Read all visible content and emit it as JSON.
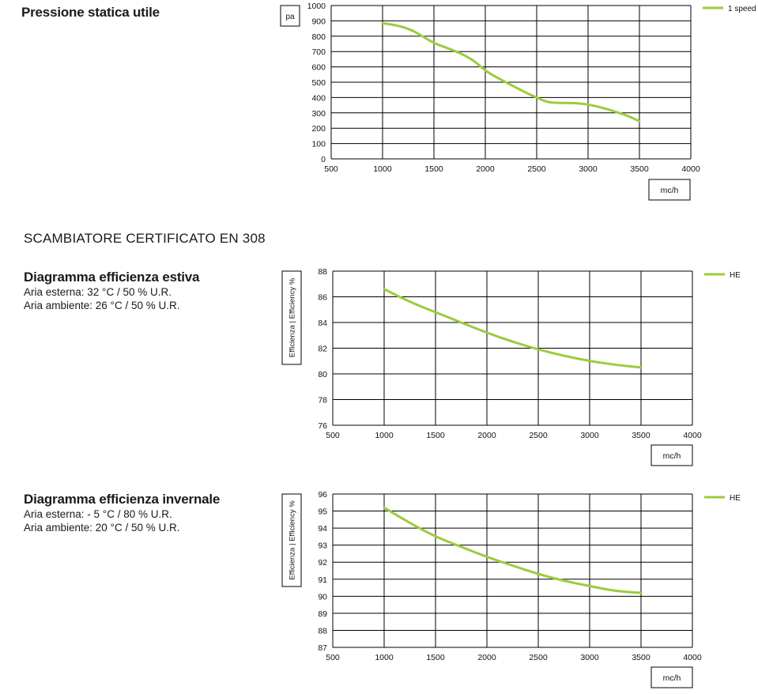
{
  "pressione": {
    "title": "Pressione statica utile"
  },
  "section_heading": "SCAMBIATORE CERTIFICATO EN 308",
  "estiva": {
    "title": "Diagramma efficienza estiva",
    "line1": "Aria esterna: 32 °C / 50 % U.R.",
    "line2": "Aria ambiente: 26 °C / 50 % U.R."
  },
  "invernale": {
    "title": "Diagramma efficienza invernale",
    "line1": "Aria esterna: - 5 °C / 80 % U.R.",
    "line2": "Aria ambiente: 20 °C / 50 % U.R."
  },
  "colors": {
    "series": "#9bcc3c",
    "grid": "#000000"
  },
  "chart_data": [
    {
      "type": "line",
      "ylabel": "pa",
      "xlabel": "mc/h",
      "xlim": [
        500,
        4000
      ],
      "ylim": [
        0,
        1000
      ],
      "xticks": [
        500,
        1000,
        1500,
        2000,
        2500,
        3000,
        3500,
        4000
      ],
      "yticks": [
        0,
        100,
        200,
        300,
        400,
        500,
        600,
        700,
        800,
        900,
        1000
      ],
      "grid": true,
      "legend_position": "top-right",
      "series": [
        {
          "name": "1 speed",
          "x": [
            1000,
            1100,
            1200,
            1300,
            1400,
            1500,
            1600,
            1700,
            1800,
            1900,
            2000,
            2100,
            2200,
            2300,
            2400,
            2500,
            2600,
            2700,
            2800,
            2900,
            3000,
            3100,
            3200,
            3300,
            3400,
            3500
          ],
          "y": [
            885,
            875,
            860,
            835,
            795,
            755,
            730,
            705,
            675,
            635,
            575,
            535,
            500,
            465,
            430,
            400,
            370,
            365,
            365,
            363,
            355,
            340,
            322,
            300,
            278,
            245
          ]
        }
      ]
    },
    {
      "type": "line",
      "ylabel": "Efficienza | Efficiency %",
      "xlabel": "mc/h",
      "xlim": [
        500,
        4000
      ],
      "ylim": [
        76,
        88
      ],
      "xticks": [
        500,
        1000,
        1500,
        2000,
        2500,
        3000,
        3500,
        4000
      ],
      "yticks": [
        76,
        78,
        80,
        82,
        84,
        86,
        88
      ],
      "grid": true,
      "legend_position": "top-right",
      "series": [
        {
          "name": "HE",
          "x": [
            1000,
            1250,
            1500,
            1750,
            2000,
            2250,
            2500,
            2750,
            3000,
            3250,
            3500
          ],
          "y": [
            86.6,
            85.6,
            84.8,
            84.0,
            83.2,
            82.5,
            81.9,
            81.4,
            81.0,
            80.7,
            80.5
          ]
        }
      ]
    },
    {
      "type": "line",
      "ylabel": "Efficienza | Efficiency %",
      "xlabel": "mc/h",
      "xlim": [
        500,
        4000
      ],
      "ylim": [
        87,
        96
      ],
      "xticks": [
        500,
        1000,
        1500,
        2000,
        2500,
        3000,
        3500,
        4000
      ],
      "yticks": [
        87,
        88,
        89,
        90,
        91,
        92,
        93,
        94,
        95,
        96
      ],
      "grid": true,
      "legend_position": "top-right",
      "series": [
        {
          "name": "HE",
          "x": [
            1000,
            1250,
            1500,
            1750,
            2000,
            2250,
            2500,
            2750,
            3000,
            3250,
            3500
          ],
          "y": [
            95.2,
            94.3,
            93.5,
            92.9,
            92.3,
            91.8,
            91.3,
            90.9,
            90.6,
            90.3,
            90.2
          ]
        }
      ]
    }
  ]
}
